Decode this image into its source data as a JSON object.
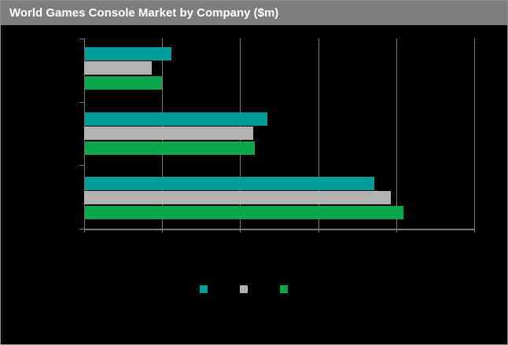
{
  "window": {
    "title": "World Games Console Market by Company ($m)",
    "colors": {
      "background": "#000000",
      "titlebar_bg": "#7e7e7e",
      "titlebar_text": "#ffffff",
      "border": "#8f8f8f",
      "gridline": "#787878",
      "axis": "#787878"
    }
  },
  "chart_data": {
    "type": "bar",
    "orientation": "horizontal",
    "title": "World Games Console Market by Company ($m)",
    "categories": [
      "",
      "",
      ""
    ],
    "series": [
      {
        "name": "",
        "color": "#009b9b",
        "values": [
          1120,
          2350,
          3720
        ]
      },
      {
        "name": "",
        "color": "#b3b3b3",
        "values": [
          870,
          2170,
          3930
        ]
      },
      {
        "name": "",
        "color": "#0ca64c",
        "values": [
          1000,
          2190,
          4090
        ]
      }
    ],
    "xlim": [
      0,
      5000
    ],
    "x_ticks": [
      0,
      1000,
      2000,
      3000,
      4000,
      5000
    ],
    "axis_tick_labels_visible": false,
    "category_labels_visible": false,
    "grid": "vertical",
    "legend": {
      "position": "bottom-center",
      "labels_visible": false,
      "swatch_colors": [
        "#009b9b",
        "#b3b3b3",
        "#0ca64c"
      ]
    },
    "notes": "Axis tick labels, category labels and legend label text are black-on-black (not visible); values estimated from gridlines assuming 1000 per division."
  }
}
